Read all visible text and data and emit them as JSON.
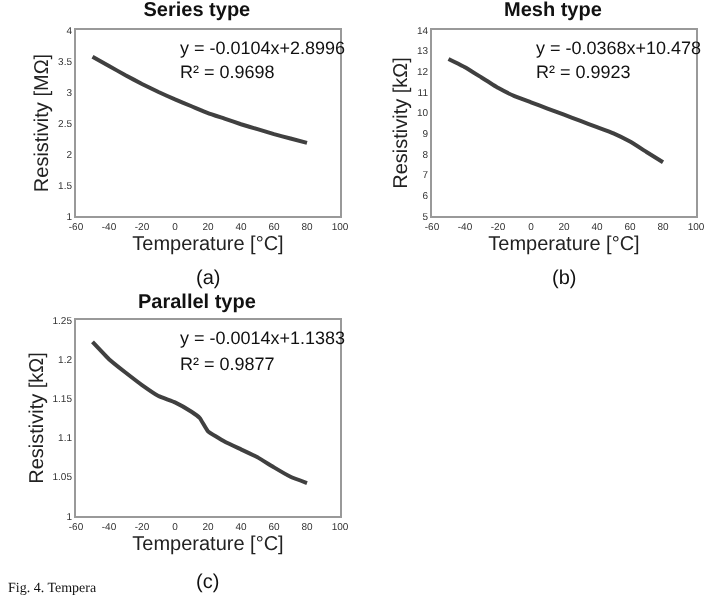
{
  "chart_data": [
    {
      "type": "line",
      "title": "Series type",
      "xlabel": "Temperature [°C]",
      "ylabel": "Resistivity [MΩ]",
      "x": [
        -50,
        -40,
        -30,
        -20,
        -10,
        0,
        10,
        20,
        30,
        40,
        50,
        60,
        70,
        80
      ],
      "series": [
        {
          "color": "#404040",
          "values": [
            3.57,
            3.42,
            3.27,
            3.13,
            3.0,
            2.88,
            2.77,
            2.66,
            2.57,
            2.48,
            2.4,
            2.32,
            2.25,
            2.18
          ]
        }
      ],
      "xlim": [
        -60,
        100
      ],
      "xticks": [
        -60,
        -40,
        -20,
        0,
        20,
        40,
        60,
        80,
        100
      ],
      "ylim": [
        1,
        4
      ],
      "yticks": [
        1,
        1.5,
        2,
        2.5,
        3,
        3.5,
        4
      ],
      "annotations": [
        "y = -0.0104x+2.8996",
        "R² = 0.9698",
        "(a)"
      ]
    },
    {
      "type": "line",
      "title": "Mesh type",
      "xlabel": "Temperature [°C]",
      "ylabel": "Resistivity [kΩ]",
      "x": [
        -50,
        -40,
        -30,
        -20,
        -10,
        0,
        10,
        20,
        30,
        40,
        50,
        60,
        70,
        80
      ],
      "series": [
        {
          "color": "#404040",
          "values": [
            12.6,
            12.2,
            11.7,
            11.2,
            10.8,
            10.5,
            10.2,
            9.9,
            9.6,
            9.3,
            9.0,
            8.6,
            8.1,
            7.6
          ]
        }
      ],
      "xlim": [
        -60,
        100
      ],
      "xticks": [
        -60,
        -40,
        -20,
        0,
        20,
        40,
        60,
        80,
        100
      ],
      "ylim": [
        5,
        14
      ],
      "yticks": [
        5,
        6,
        7,
        8,
        9,
        10,
        11,
        12,
        13,
        14
      ],
      "annotations": [
        "y = -0.0368x+10.478",
        "R² = 0.9923",
        "(b)"
      ]
    },
    {
      "type": "line",
      "title": "Parallel type",
      "xlabel": "Temperature [°C]",
      "ylabel": "Resistivity [kΩ]",
      "x": [
        -50,
        -40,
        -30,
        -20,
        -10,
        0,
        10,
        15,
        20,
        30,
        40,
        50,
        60,
        70,
        80
      ],
      "series": [
        {
          "color": "#404040",
          "values": [
            1.222,
            1.2,
            1.183,
            1.167,
            1.153,
            1.145,
            1.133,
            1.125,
            1.108,
            1.095,
            1.085,
            1.075,
            1.062,
            1.05,
            1.042
          ]
        }
      ],
      "xlim": [
        -60,
        100
      ],
      "xticks": [
        -60,
        -40,
        -20,
        0,
        20,
        40,
        60,
        80,
        100
      ],
      "ylim": [
        1,
        1.25
      ],
      "yticks": [
        1,
        1.05,
        1.1,
        1.15,
        1.2,
        1.25
      ],
      "annotations": [
        "y = -0.0014x+1.1383",
        "R² = 0.9877",
        "(c)",
        "Fig. 4. Tempera"
      ]
    }
  ]
}
